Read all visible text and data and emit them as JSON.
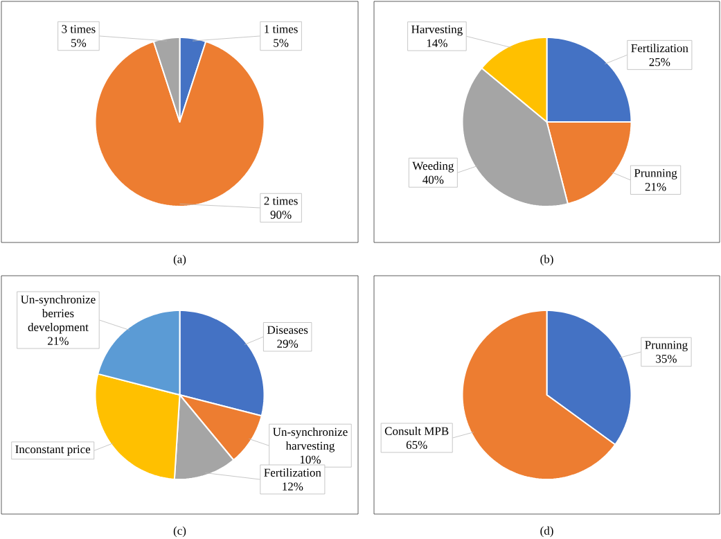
{
  "chart_data": [
    {
      "type": "pie",
      "categories": [
        "1 times",
        "2 times",
        "3 times"
      ],
      "values": [
        5,
        90,
        5
      ],
      "colors": [
        "#4472c4",
        "#ed7d31",
        "#a5a5a5"
      ],
      "value_labels": [
        "5%",
        "90%",
        "5%"
      ],
      "annotations": [
        "(a)"
      ]
    },
    {
      "type": "pie",
      "categories": [
        "Fertilization",
        "Prunning",
        "Weeding",
        "Harvesting"
      ],
      "values": [
        25,
        21,
        40,
        14
      ],
      "colors": [
        "#4472c4",
        "#ed7d31",
        "#a5a5a5",
        "#ffc000"
      ],
      "value_labels": [
        "25%",
        "21%",
        "40%",
        "14%"
      ],
      "annotations": [
        "(b)"
      ]
    },
    {
      "type": "pie",
      "categories": [
        "Diseases",
        "Un-synchronize harvesting",
        "Fertilization",
        "Inconstant price",
        "Un-synchronize berries development"
      ],
      "values": [
        29,
        10,
        12,
        28,
        21
      ],
      "colors": [
        "#4472c4",
        "#ed7d31",
        "#a5a5a5",
        "#ffc000",
        "#5b9bd5"
      ],
      "value_labels": [
        "29%",
        "10%",
        "12%",
        null,
        "21%"
      ],
      "annotations": [
        "(c)"
      ]
    },
    {
      "type": "pie",
      "categories": [
        "Prunning",
        "Consult MPB"
      ],
      "values": [
        35,
        65
      ],
      "colors": [
        "#4472c4",
        "#ed7d31"
      ],
      "value_labels": [
        "35%",
        "65%"
      ],
      "annotations": [
        "(d)"
      ]
    }
  ]
}
